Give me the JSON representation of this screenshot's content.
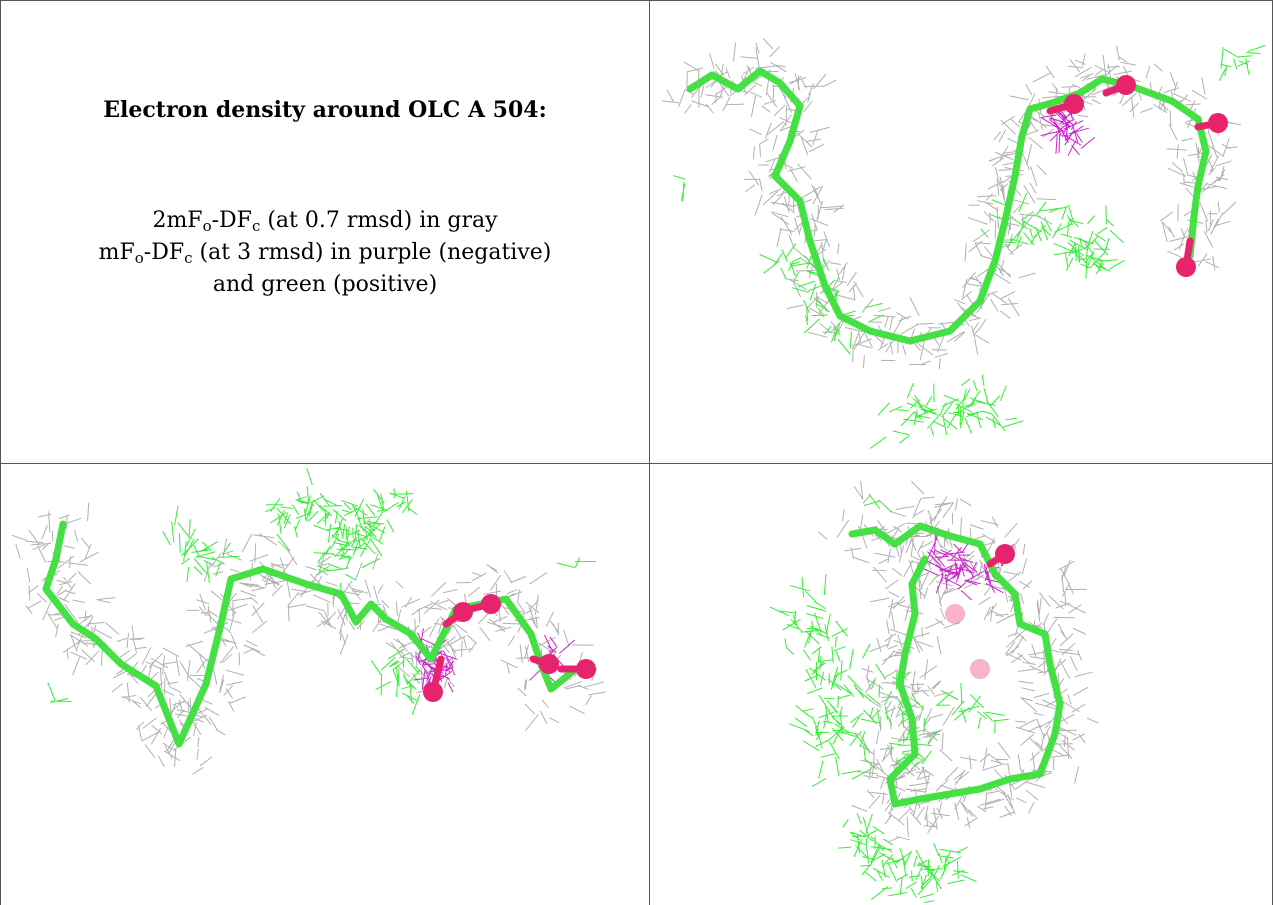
{
  "caption": {
    "title": "Electron density around OLC A 504:",
    "line1": {
      "pre": "2mF",
      "sub1": "o",
      "mid": "-DF",
      "sub2": "c",
      "post": " (at 0.7 rmsd) in gray"
    },
    "line2": {
      "pre": "mF",
      "sub1": "o",
      "mid": "-DF",
      "sub2": "c",
      "post": " (at 3 rmsd) in purple (negative)"
    },
    "line3": "and green (positive)"
  },
  "panels": [
    {
      "view": "top-right"
    },
    {
      "view": "bottom-left"
    },
    {
      "view": "bottom-right"
    }
  ],
  "colors": {
    "density_2fofc": "#b0b0b0",
    "density_negative": "#cc22cc",
    "density_positive": "#33ee33",
    "carbon": "#44e044",
    "oxygen": "#e8236e",
    "border": "#555555"
  }
}
